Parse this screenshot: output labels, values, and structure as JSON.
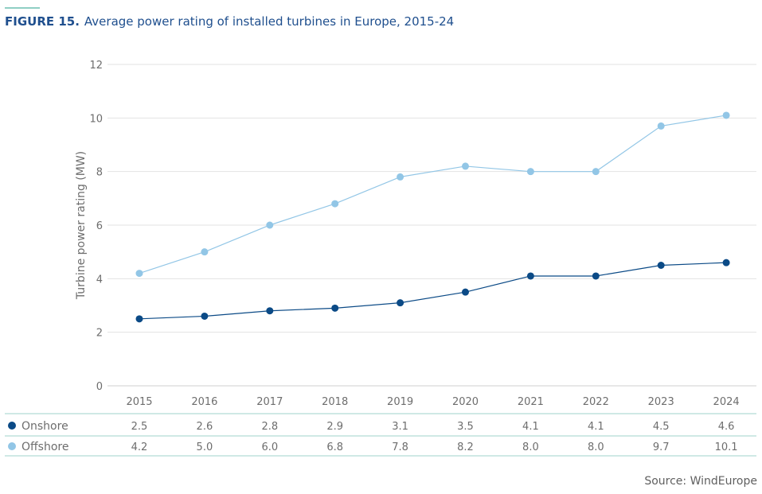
{
  "figure": {
    "number": "FIGURE 15.",
    "title": "Average power rating of installed turbines in Europe, 2015-24",
    "source": "Source: WindEurope"
  },
  "colors": {
    "onshore": "#0b4a86",
    "offshore": "#92c6e6",
    "accent_rule": "#8fcfc4",
    "title": "#1f4f8e"
  },
  "chart_data": {
    "type": "line",
    "title": "Average power rating of installed turbines in Europe, 2015-24",
    "xlabel": "",
    "ylabel": "Turbine power rating (MW)",
    "ylim": [
      0,
      12
    ],
    "yticks": [
      0,
      2,
      4,
      6,
      8,
      10,
      12
    ],
    "grid": true,
    "legend": "data-table-below",
    "categories": [
      "2015",
      "2016",
      "2017",
      "2018",
      "2019",
      "2020",
      "2021",
      "2022",
      "2023",
      "2024"
    ],
    "series": [
      {
        "name": "Onshore",
        "color": "#0b4a86",
        "values": [
          2.5,
          2.6,
          2.8,
          2.9,
          3.1,
          3.5,
          4.1,
          4.1,
          4.5,
          4.6
        ],
        "labels": [
          "2.5",
          "2.6",
          "2.8",
          "2.9",
          "3.1",
          "3.5",
          "4.1",
          "4.1",
          "4.5",
          "4.6"
        ]
      },
      {
        "name": "Offshore",
        "color": "#92c6e6",
        "values": [
          4.2,
          5.0,
          6.0,
          6.8,
          7.8,
          8.2,
          8.0,
          8.0,
          9.7,
          10.1
        ],
        "labels": [
          "4.2",
          "5.0",
          "6.0",
          "6.8",
          "7.8",
          "8.2",
          "8.0",
          "8.0",
          "9.7",
          "10.1"
        ]
      }
    ]
  }
}
